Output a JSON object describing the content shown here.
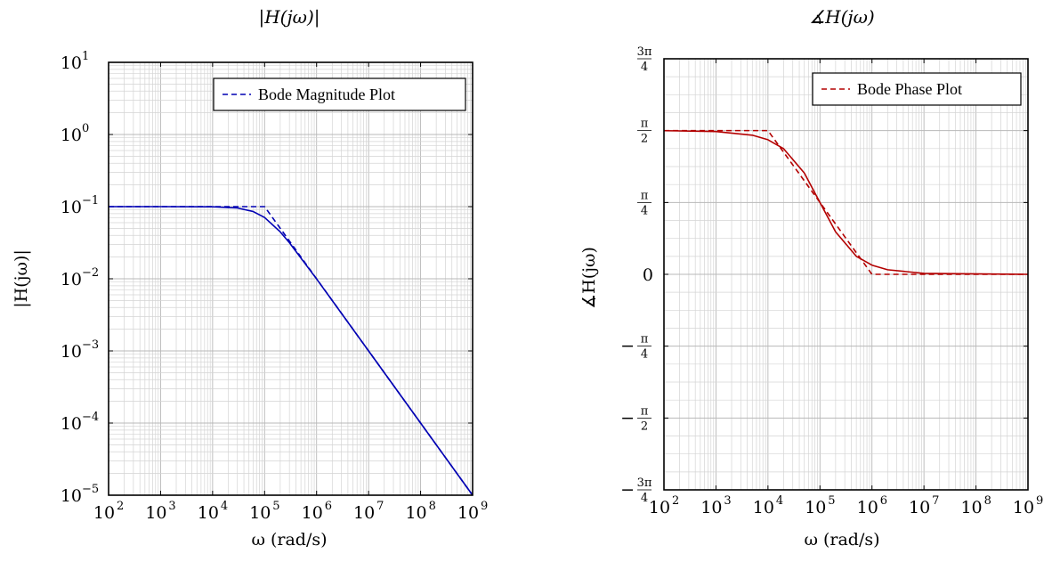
{
  "chart_data": [
    {
      "type": "line",
      "title": "|H(jω)|",
      "xlabel": "ω (rad/s)",
      "ylabel": "|H(jω)|",
      "x_scale": "log",
      "y_scale": "log",
      "xlim": [
        100,
        1000000000
      ],
      "ylim": [
        1e-05,
        10
      ],
      "x_ticks": [
        100,
        1000,
        10000,
        100000,
        1000000,
        10000000,
        100000000,
        1000000000
      ],
      "x_tick_labels": [
        {
          "base": "10",
          "exp": "2"
        },
        {
          "base": "10",
          "exp": "3"
        },
        {
          "base": "10",
          "exp": "4"
        },
        {
          "base": "10",
          "exp": "5"
        },
        {
          "base": "10",
          "exp": "6"
        },
        {
          "base": "10",
          "exp": "7"
        },
        {
          "base": "10",
          "exp": "8"
        },
        {
          "base": "10",
          "exp": "9"
        }
      ],
      "y_ticks": [
        1e-05,
        0.0001,
        0.001,
        0.01,
        0.1,
        1,
        10
      ],
      "y_tick_labels": [
        {
          "base": "10",
          "exp": "−5"
        },
        {
          "base": "10",
          "exp": "−4"
        },
        {
          "base": "10",
          "exp": "−3"
        },
        {
          "base": "10",
          "exp": "−2"
        },
        {
          "base": "10",
          "exp": "−1"
        },
        {
          "base": "10",
          "exp": "0"
        },
        {
          "base": "10",
          "exp": "1"
        }
      ],
      "grid": true,
      "minor_grid": true,
      "legend_position": "top-right",
      "series": [
        {
          "name": "",
          "style": "solid",
          "color": "#0000b3",
          "x": [
            100,
            1000,
            10000,
            30000,
            60000,
            100000,
            200000,
            300000,
            1000000,
            10000000,
            100000000,
            1000000000
          ],
          "y": [
            0.1,
            0.1,
            0.0995,
            0.0958,
            0.0857,
            0.0707,
            0.0447,
            0.0316,
            0.00995,
            0.001,
            0.0001,
            1e-05
          ]
        },
        {
          "name": "Bode Magnitude Plot",
          "style": "dashed",
          "color": "#0000b3",
          "x": [
            100,
            100000,
            1000000000
          ],
          "y": [
            0.1,
            0.1,
            1e-05
          ]
        }
      ]
    },
    {
      "type": "line",
      "title": "∡H(jω)",
      "xlabel": "ω (rad/s)",
      "ylabel": "∡H(jω)",
      "x_scale": "log",
      "xlim": [
        100,
        1000000000
      ],
      "ylim": [
        -2.356,
        2.356
      ],
      "x_ticks": [
        100,
        1000,
        10000,
        100000,
        1000000,
        10000000,
        100000000,
        1000000000
      ],
      "x_tick_labels": [
        {
          "base": "10",
          "exp": "2"
        },
        {
          "base": "10",
          "exp": "3"
        },
        {
          "base": "10",
          "exp": "4"
        },
        {
          "base": "10",
          "exp": "5"
        },
        {
          "base": "10",
          "exp": "6"
        },
        {
          "base": "10",
          "exp": "7"
        },
        {
          "base": "10",
          "exp": "8"
        },
        {
          "base": "10",
          "exp": "9"
        }
      ],
      "y_ticks": [
        -2.356,
        -1.571,
        -0.785,
        0,
        0.785,
        1.571,
        2.356
      ],
      "y_tick_labels": [
        {
          "sign": "−",
          "num": "3π",
          "den": "4"
        },
        {
          "sign": "−",
          "num": "π",
          "den": "2"
        },
        {
          "sign": "−",
          "num": "π",
          "den": "4"
        },
        {
          "plain": "0"
        },
        {
          "sign": "",
          "num": "π",
          "den": "4"
        },
        {
          "sign": "",
          "num": "π",
          "den": "2"
        },
        {
          "sign": "",
          "num": "3π",
          "den": "4"
        }
      ],
      "grid": true,
      "minor_grid": true,
      "legend_position": "top-right",
      "series": [
        {
          "name": "",
          "style": "solid",
          "color": "#b30000",
          "x": [
            100,
            1000,
            5000,
            10000,
            20000,
            50000,
            100000,
            200000,
            500000,
            1000000,
            2000000,
            10000000,
            1000000000
          ],
          "y": [
            1.57,
            1.561,
            1.521,
            1.471,
            1.373,
            1.107,
            0.785,
            0.464,
            0.197,
            0.1,
            0.05,
            0.01,
            0.0
          ]
        },
        {
          "name": "Bode Phase Plot",
          "style": "dashed",
          "color": "#b30000",
          "x": [
            100,
            10000,
            1000000,
            1000000000
          ],
          "y": [
            1.571,
            1.571,
            0,
            0
          ]
        }
      ]
    }
  ]
}
